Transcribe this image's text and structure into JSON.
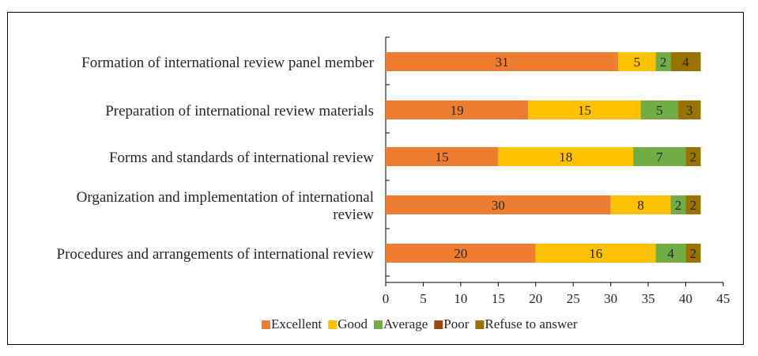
{
  "chart_data": {
    "type": "bar",
    "orientation": "horizontal",
    "stacked": true,
    "categories": [
      [
        "Formation of international review panel member"
      ],
      [
        "Preparation of international review materials"
      ],
      [
        "Forms and standards of international review"
      ],
      [
        "Organization and implementation of international",
        "review"
      ],
      [
        "Procedures and arrangements of international review"
      ]
    ],
    "series": [
      {
        "name": "Excellent",
        "color": "#ED7D31",
        "values": [
          31,
          19,
          15,
          30,
          20
        ]
      },
      {
        "name": "Good",
        "color": "#FFC000",
        "values": [
          5,
          15,
          18,
          8,
          16
        ]
      },
      {
        "name": "Average",
        "color": "#70AD47",
        "values": [
          2,
          5,
          7,
          2,
          4
        ]
      },
      {
        "name": "Poor",
        "color": "#9E480E",
        "values": [
          0,
          0,
          0,
          0,
          0
        ]
      },
      {
        "name": "Refuse to answer",
        "color": "#997300",
        "values": [
          4,
          3,
          2,
          2,
          2
        ]
      }
    ],
    "xlim": [
      0,
      45
    ],
    "xticks": [
      0,
      5,
      10,
      15,
      20,
      25,
      30,
      35,
      40,
      45
    ],
    "grid": false,
    "legend_position": "bottom"
  }
}
